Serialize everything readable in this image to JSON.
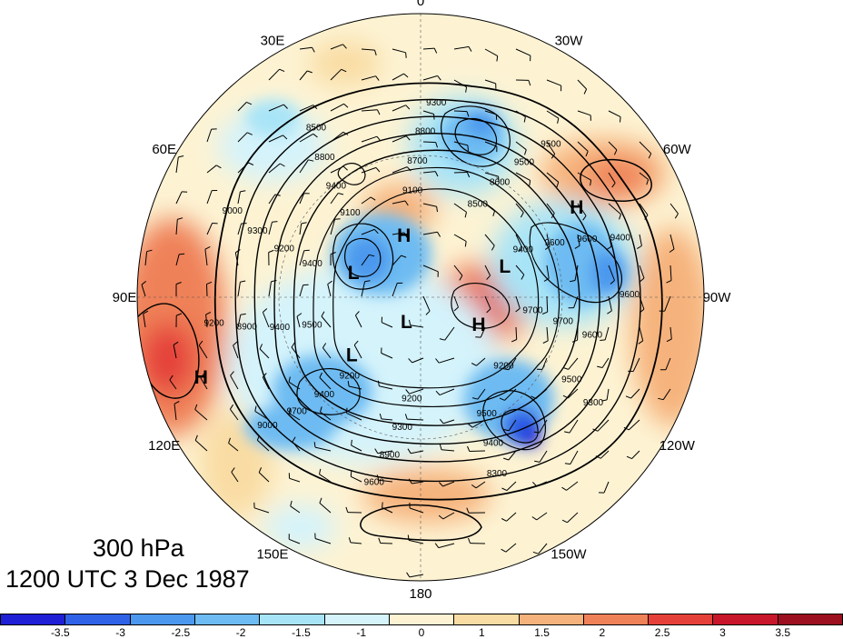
{
  "title": {
    "level": "300 hPa",
    "time": "1200 UTC 3 Dec 1987"
  },
  "projection": {
    "type": "north-polar-stereographic",
    "longitude_labels": [
      {
        "text": "0",
        "lon": 0
      },
      {
        "text": "30W",
        "lon": -30
      },
      {
        "text": "60W",
        "lon": -60
      },
      {
        "text": "90W",
        "lon": -90
      },
      {
        "text": "120W",
        "lon": -120
      },
      {
        "text": "150W",
        "lon": -150
      },
      {
        "text": "180",
        "lon": 180
      },
      {
        "text": "150E",
        "lon": 150
      },
      {
        "text": "120E",
        "lon": 120
      },
      {
        "text": "90E",
        "lon": 90
      },
      {
        "text": "60E",
        "lon": 60
      },
      {
        "text": "30E",
        "lon": 30
      }
    ]
  },
  "pressure_centers": [
    {
      "type": "H",
      "label": "H",
      "lon": -60,
      "lat": 42
    },
    {
      "type": "H",
      "label": "H",
      "lon": 15,
      "lat": 72
    },
    {
      "type": "H",
      "label": "H",
      "lon": -115,
      "lat": 72
    },
    {
      "type": "H",
      "label": "H",
      "lon": 110,
      "lat": 30
    },
    {
      "type": "L",
      "label": "L",
      "lon": -70,
      "lat": 65
    },
    {
      "type": "L",
      "label": "L",
      "lon": 70,
      "lat": 70
    },
    {
      "type": "L",
      "label": "L",
      "lon": 150,
      "lat": 82
    },
    {
      "type": "L",
      "label": "L",
      "lon": 130,
      "lat": 65
    }
  ],
  "contour_labels": [
    "9600",
    "9500",
    "9500",
    "9200",
    "9300",
    "9400",
    "9300",
    "9200",
    "8300",
    "8900",
    "9400",
    "9500",
    "9600",
    "9700",
    "9400",
    "9400",
    "9000",
    "8900",
    "9200",
    "9100",
    "9200",
    "9300",
    "9400",
    "9100",
    "9000",
    "8800",
    "8700",
    "8500",
    "8500",
    "8800",
    "8600",
    "9400",
    "9300",
    "9500",
    "9600",
    "9700",
    "9500",
    "9600",
    "9700",
    "9200",
    "9400",
    "9600"
  ],
  "colorbar": {
    "colors": [
      "#1f1fd6",
      "#2f62e6",
      "#4b98ee",
      "#6dbbf2",
      "#a8e4f7",
      "#d4f3fb",
      "#fdf3d3",
      "#f9dca3",
      "#f6b27c",
      "#ef8158",
      "#e5413a",
      "#c8172a",
      "#9b0f1f"
    ],
    "tick_labels": [
      "-3.5",
      "-3",
      "-2.5",
      "-2",
      "-1.5",
      "-1",
      "0",
      "1",
      "1.5",
      "2",
      "2.5",
      "3",
      "3.5"
    ]
  }
}
